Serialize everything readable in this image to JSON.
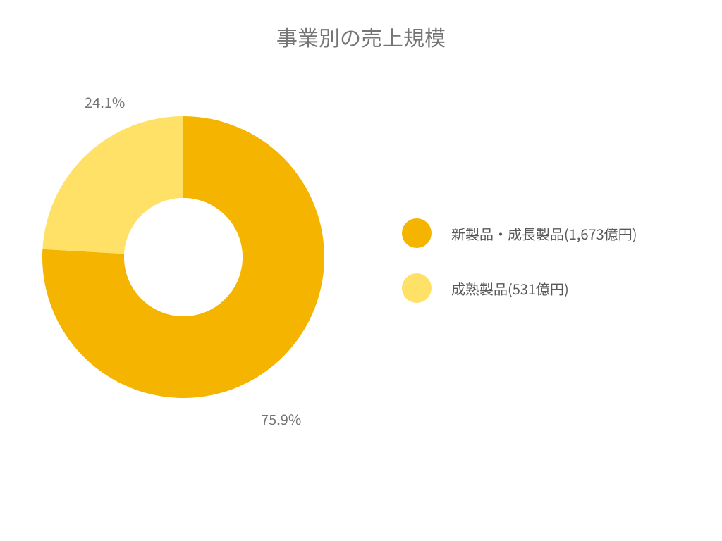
{
  "title": "事業別の売上規模",
  "chart": {
    "type": "donut",
    "inner_radius_ratio": 0.42,
    "background_color": "#ffffff",
    "slices": [
      {
        "key": "new_growth",
        "value": 75.9,
        "color": "#f5b400",
        "label": "75.9%"
      },
      {
        "key": "mature",
        "value": 24.1,
        "color": "#ffe168",
        "label": "24.1%"
      }
    ],
    "start_angle_deg": 0,
    "title_fontsize": 30,
    "title_color": "#757575",
    "slice_label_fontsize": 20,
    "slice_label_color": "#757575"
  },
  "legend": {
    "items": [
      {
        "color": "#f5b400",
        "label": "新製品・成長製品(1,673億円)"
      },
      {
        "color": "#ffe168",
        "label": "成熟製品(531億円)"
      }
    ],
    "label_fontsize": 20,
    "label_color": "#595959",
    "swatch_size": 42
  }
}
